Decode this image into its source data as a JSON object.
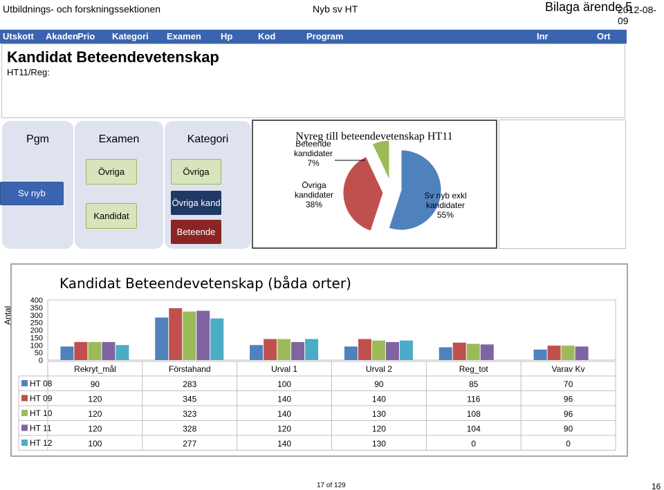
{
  "header": {
    "left": "Utbildnings- och forskningssektionen",
    "mid": "Nyb sv HT",
    "bilaga": "Bilaga ärende 5",
    "date": "2012-08-09"
  },
  "nav": [
    "Utskott",
    "Akaden",
    "Prio",
    "Kategori",
    "Examen",
    "Hp",
    "Kod",
    "Program",
    "Inr",
    "Ort"
  ],
  "page": {
    "title": "Kandidat Beteendevetenskap",
    "subtitle": "HT11/Reg:"
  },
  "flow": {
    "pgm": {
      "header": "Pgm",
      "item": "Sv nyb"
    },
    "examen": {
      "header": "Examen",
      "items": [
        "Övriga",
        "Kandidat"
      ]
    },
    "kategori": {
      "header": "Kategori",
      "items": [
        "Övriga",
        "Övriga kand",
        "Beteende"
      ]
    }
  },
  "colors": {
    "nav": "#3a64b0",
    "green_btn": "#d8e4bc",
    "navy_btn": "#1f3864",
    "maroon_btn": "#8b2525",
    "series": [
      "#4f81bd",
      "#c0504d",
      "#9bbb59",
      "#8064a2",
      "#4bacc6"
    ]
  },
  "pie_chart": {
    "type": "pie",
    "title": "Nyreg till beteendevetenskap   HT11",
    "slices": [
      {
        "label_lines": [
          "Sv nyb exkl",
          "kandidater",
          "55%"
        ],
        "value": 55,
        "color": "#4f81bd"
      },
      {
        "label_lines": [
          "Övriga",
          "kandidater",
          "38%"
        ],
        "value": 38,
        "color": "#c0504d"
      },
      {
        "label_lines": [
          "Beteende",
          "kandidater",
          "7%"
        ],
        "value": 7,
        "color": "#9bbb59"
      }
    ]
  },
  "chart_data": {
    "type": "bar",
    "title": "Kandidat Beteendevetenskap (båda orter)",
    "ylabel": "Antal",
    "ylim": [
      0,
      400
    ],
    "yticks": [
      "400",
      "350",
      "300",
      "250",
      "200",
      "150",
      "100",
      "50",
      "0"
    ],
    "categories": [
      "Rekryt_mål",
      "Förstahand",
      "Urval 1",
      "Urval 2",
      "Reg_tot",
      "Varav Kv"
    ],
    "series": [
      {
        "name": "HT 08",
        "values": [
          90,
          283,
          100,
          90,
          85,
          70
        ],
        "color": "#4f81bd"
      },
      {
        "name": "HT 09",
        "values": [
          120,
          345,
          140,
          140,
          116,
          96
        ],
        "color": "#c0504d"
      },
      {
        "name": "HT 10",
        "values": [
          120,
          323,
          140,
          130,
          108,
          96
        ],
        "color": "#9bbb59"
      },
      {
        "name": "HT 11",
        "values": [
          120,
          328,
          120,
          120,
          104,
          90
        ],
        "color": "#8064a2"
      },
      {
        "name": "HT 12",
        "values": [
          100,
          277,
          140,
          130,
          0,
          0
        ],
        "color": "#4bacc6"
      }
    ]
  },
  "footer": {
    "page": "17 of 129",
    "num": "16"
  }
}
